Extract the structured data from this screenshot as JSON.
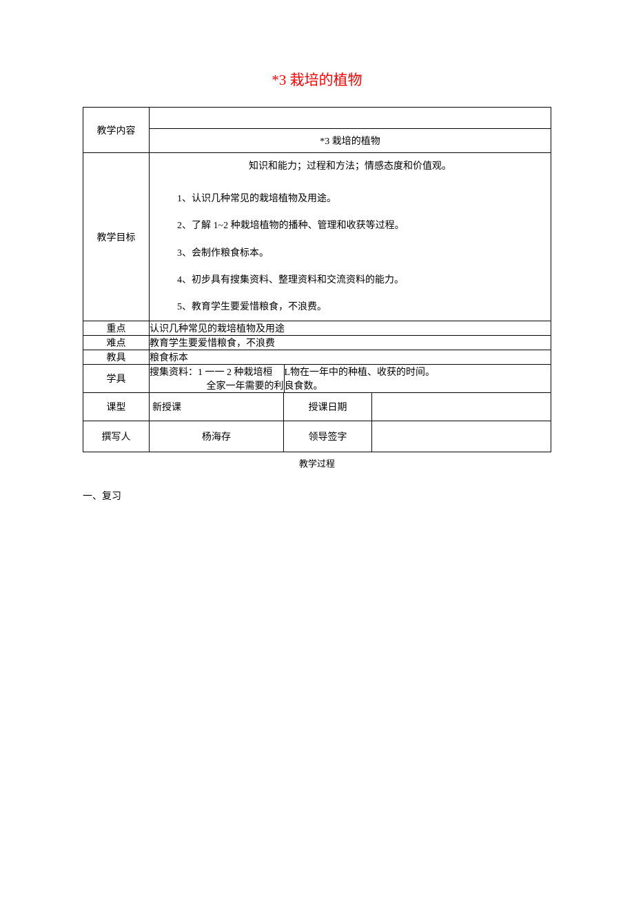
{
  "title": "*3 栽培的植物",
  "labels": {
    "content": "教学内容",
    "goals": "教学目标",
    "keypoint": "重点",
    "difficulty": "难点",
    "teaching_tool": "教具",
    "student_tool": "学具",
    "class_type": "课型",
    "class_date": "授课日期",
    "author": "撰写人",
    "leader_sign": "领导签字"
  },
  "values": {
    "content_title": "*3 栽培的植物",
    "goals_header": "知识和能力；过程和方法；情感态度和价值观。",
    "goals": {
      "g1": "1、认识几种常见的栽培植物及用途。",
      "g2": "2、了解 1~2 种栽培植物的播种、管理和收获等过程。",
      "g3": "3、会制作粮食标本。",
      "g4": "4、初步具有搜集资料、整理资料和交流资料的能力。",
      "g5": "5、教育学生要爱惜粮食，不浪费。"
    },
    "keypoint": "认识几种常见的栽培植物及用途",
    "difficulty": "教育学生要爱惜粮食，不浪费",
    "teaching_tool": "粮食标本",
    "student_tool_line1_left": "搜集资料：1 一一 2 种栽培桓",
    "student_tool_line1_right": "L物在一年中的种植、收获的时间。",
    "student_tool_line2_left": "全家一年需要的利",
    "student_tool_line2_right": "良食数。",
    "class_type": "新授课",
    "class_date": "",
    "author": "杨海存",
    "leader_sign": ""
  },
  "process_title": "教学过程",
  "section_1": "一、复习",
  "colors": {
    "title_color": "#ff0000",
    "text_color": "#000000",
    "border_color": "#000000",
    "background_color": "#ffffff"
  },
  "typography": {
    "title_fontsize": 21,
    "body_fontsize": 14,
    "font_family": "SimSun"
  },
  "table": {
    "label_column_width": 96,
    "value_column_width": 195,
    "date_column_width": 128
  }
}
